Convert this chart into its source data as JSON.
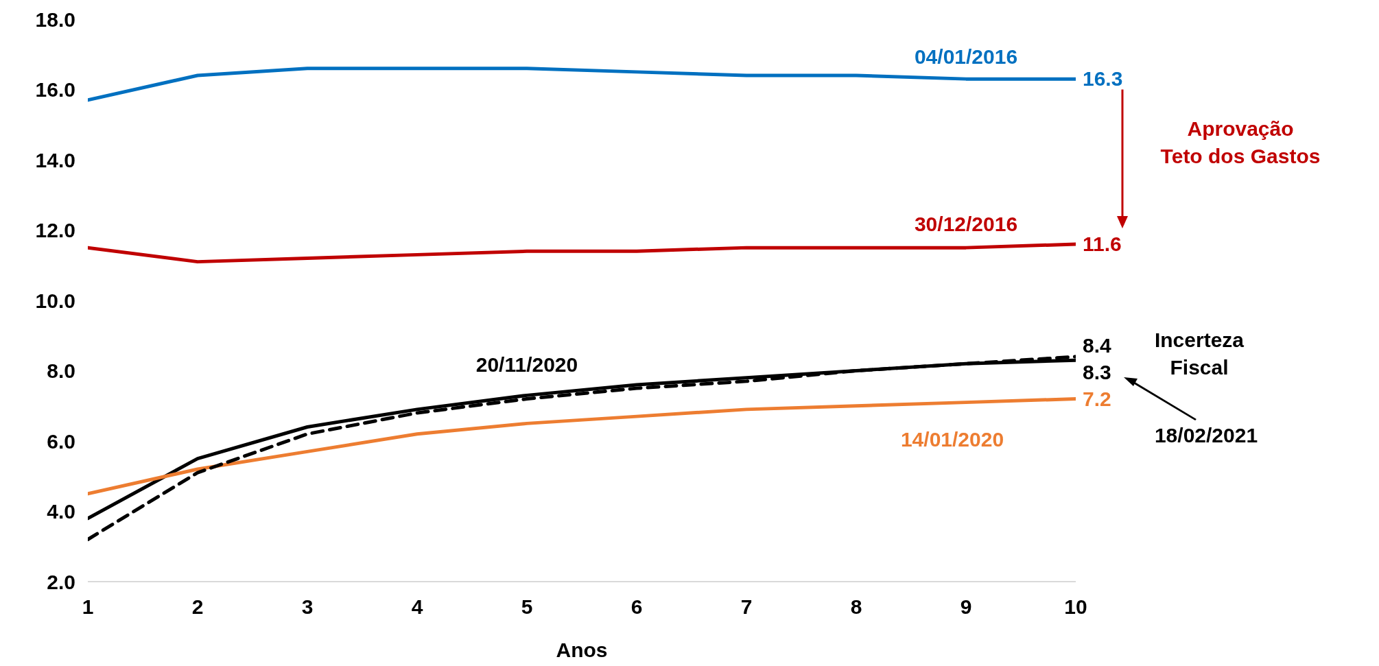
{
  "chart_data": {
    "type": "line",
    "xlabel": "Anos",
    "x": [
      1,
      2,
      3,
      4,
      5,
      6,
      7,
      8,
      9,
      10
    ],
    "xlim": [
      1,
      10
    ],
    "xticks": [
      1,
      2,
      3,
      4,
      5,
      6,
      7,
      8,
      9,
      10
    ],
    "ylim": [
      2,
      18
    ],
    "yticks": [
      {
        "value": 2,
        "label": "2.0"
      },
      {
        "value": 4,
        "label": "4.0"
      },
      {
        "value": 6,
        "label": "6.0"
      },
      {
        "value": 8,
        "label": "8.0"
      },
      {
        "value": 10,
        "label": "10.0"
      },
      {
        "value": 12,
        "label": "12.0"
      },
      {
        "value": 14,
        "label": "14.0"
      },
      {
        "value": 16,
        "label": "16.0"
      },
      {
        "value": 18,
        "label": "18.0"
      }
    ],
    "series": [
      {
        "name": "04/01/2016",
        "color": "#0070c0",
        "values": [
          15.7,
          16.4,
          16.6,
          16.6,
          16.6,
          16.5,
          16.4,
          16.4,
          16.3,
          16.3
        ],
        "value_labels": [
          null,
          null,
          null,
          null,
          null,
          null,
          null,
          null,
          null,
          "16.3"
        ]
      },
      {
        "name": "30/12/2016",
        "color": "#c00000",
        "values": [
          11.5,
          11.1,
          11.2,
          11.3,
          11.4,
          11.4,
          11.5,
          11.5,
          11.5,
          11.6
        ],
        "value_labels": [
          null,
          null,
          null,
          null,
          null,
          null,
          null,
          null,
          null,
          "11.6"
        ]
      },
      {
        "name": "20/11/2020",
        "color": "#000000",
        "values": [
          3.8,
          5.5,
          6.4,
          6.9,
          7.3,
          7.6,
          7.8,
          8.0,
          8.2,
          8.3
        ],
        "value_labels": [
          null,
          null,
          null,
          null,
          null,
          null,
          null,
          null,
          null,
          "8.3"
        ]
      },
      {
        "name": "14/01/2020",
        "color": "#ed7d31",
        "values": [
          4.5,
          5.2,
          5.7,
          6.2,
          6.5,
          6.7,
          6.9,
          7.0,
          7.1,
          7.2
        ],
        "value_labels": [
          null,
          null,
          null,
          null,
          null,
          null,
          null,
          null,
          null,
          "7.2"
        ]
      },
      {
        "name": "18/02/2021",
        "color": "#000000",
        "line_style": "dashed",
        "values": [
          3.2,
          5.1,
          6.2,
          6.8,
          7.2,
          7.5,
          7.7,
          8.0,
          8.2,
          8.4
        ],
        "value_labels": [
          null,
          null,
          null,
          null,
          null,
          null,
          null,
          null,
          null,
          "8.4"
        ]
      }
    ],
    "annotations": [
      "Aprovação\nTeto dos Gastos",
      "Incerteza\nFiscal"
    ]
  }
}
